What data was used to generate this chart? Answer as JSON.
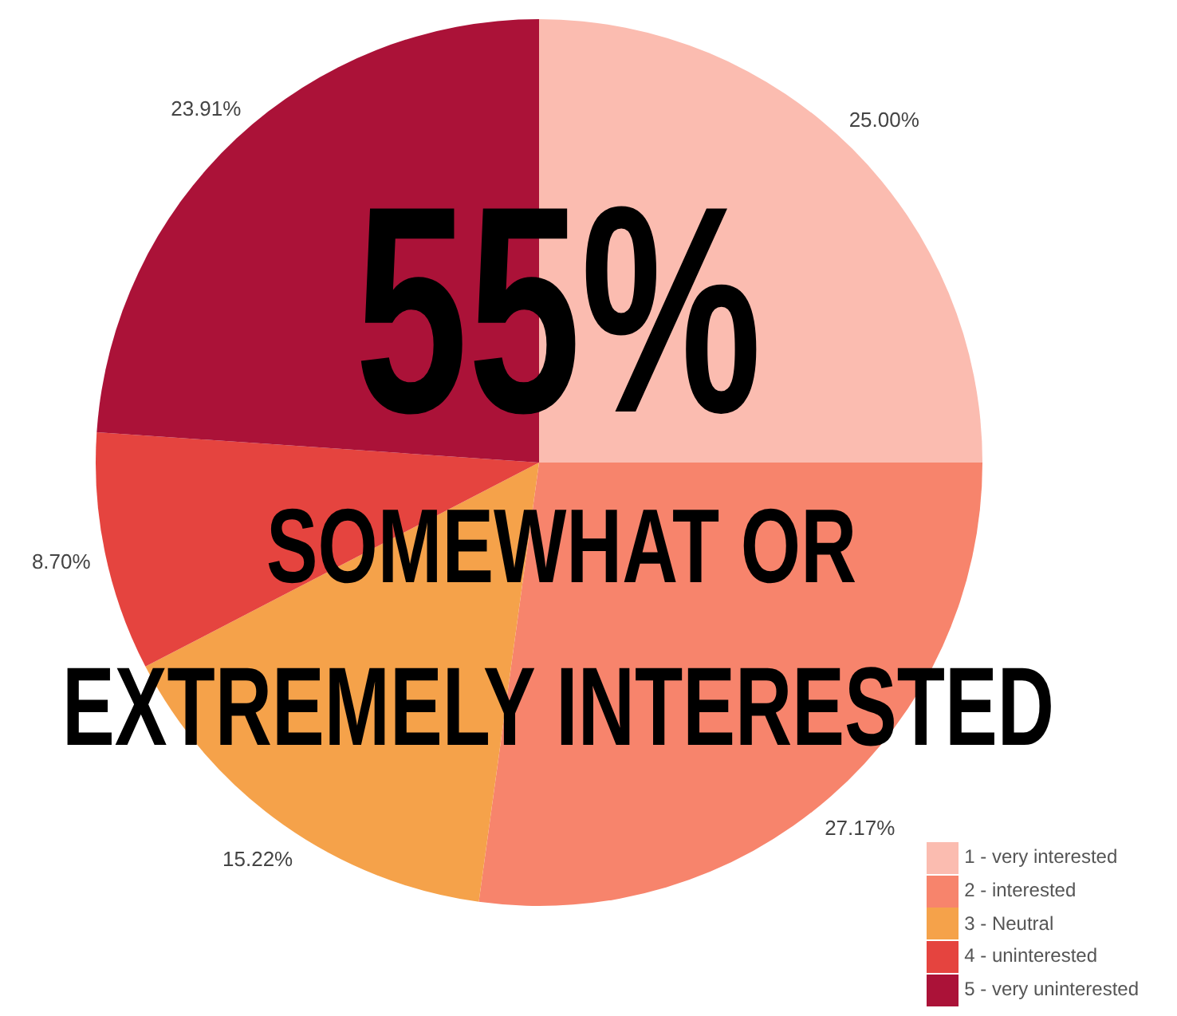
{
  "chart_data": {
    "type": "pie",
    "categories": [
      "1 - very interested",
      "2 - interested",
      "3 - Neutral",
      "4 - uninterested",
      "5 - very uninterested"
    ],
    "values": [
      25.0,
      27.17,
      15.22,
      8.7,
      23.91
    ],
    "value_labels": [
      "25.00%",
      "27.17%",
      "15.22%",
      "8.70%",
      "23.91%"
    ],
    "colors": [
      "#fbbcb0",
      "#f7846c",
      "#f5a24a",
      "#e5443f",
      "#ab1238"
    ],
    "legend": "bottom right",
    "annotations": [
      "55%",
      "SOMEWHAT OR",
      "EXTREMELY INTERESTED"
    ]
  }
}
